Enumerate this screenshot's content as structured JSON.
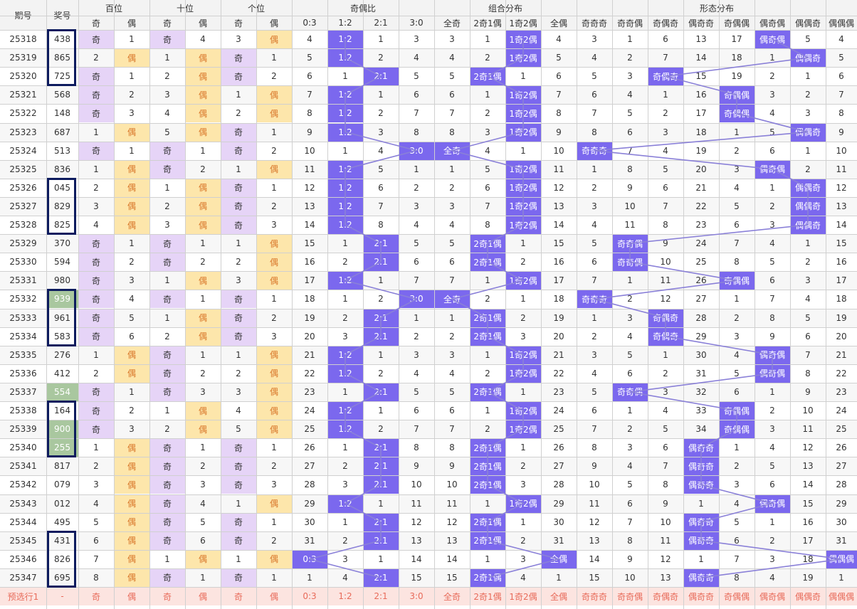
{
  "headers": {
    "qihao": "期号",
    "jianghao": "奖号",
    "sort_icon": "sort-arrows-icon",
    "groups": [
      "百位",
      "十位",
      "个位",
      "奇偶比",
      "组合分布",
      "形态分布"
    ],
    "sub_bai": [
      "奇",
      "偶"
    ],
    "sub_shi": [
      "奇",
      "偶"
    ],
    "sub_ge": [
      "奇",
      "偶"
    ],
    "sub_ratio": [
      "0:3",
      "1:2",
      "2:1",
      "3:0"
    ],
    "sub_combo": [
      "全奇",
      "2奇1偶",
      "1奇2偶",
      "全偶"
    ],
    "sub_shape": [
      "奇奇奇",
      "奇奇偶",
      "奇偶奇",
      "偶奇奇",
      "奇偶偶",
      "偶奇偶",
      "偶偶奇",
      "偶偶偶"
    ]
  },
  "colors": {
    "chip": "#7b68ee",
    "odd_fill": "#e6d4f7",
    "even_fill": "#fde6ab",
    "highlight_num": "#a9c79f",
    "box_border": "#0d1b5e",
    "footer_text": "#e86b5a"
  },
  "rows": [
    {
      "qi": "25318",
      "num": "438",
      "hl": 0,
      "b": "奇",
      "bv": "1",
      "s": "奇",
      "sv": "4",
      "g": "3",
      "gv": "偶",
      "r": [
        "4",
        "1:2",
        "1",
        "3"
      ],
      "rh": 1,
      "c": [
        "3",
        "1",
        "1奇2偶",
        "4"
      ],
      "ch": 2,
      "f": [
        "3",
        "1",
        "6",
        "13",
        "17",
        "偶奇偶",
        "5",
        "4"
      ],
      "fh": 5
    },
    {
      "qi": "25319",
      "num": "865",
      "hl": 0,
      "b": "2",
      "bv": "偶",
      "s": "1",
      "sv": "偶",
      "g": "奇",
      "gv": "1",
      "r": [
        "5",
        "1:2",
        "2",
        "4"
      ],
      "rh": 1,
      "c": [
        "4",
        "2",
        "1奇2偶",
        "5"
      ],
      "ch": 2,
      "f": [
        "4",
        "2",
        "7",
        "14",
        "18",
        "1",
        "偶偶奇",
        "5"
      ],
      "fh": 6
    },
    {
      "qi": "25320",
      "num": "725",
      "hl": 0,
      "b": "奇",
      "bv": "1",
      "s": "2",
      "sv": "偶",
      "g": "奇",
      "gv": "2",
      "r": [
        "6",
        "1",
        "2:1",
        "5"
      ],
      "rh": 2,
      "c": [
        "5",
        "2奇1偶",
        "1",
        "6"
      ],
      "ch": 1,
      "f": [
        "5",
        "3",
        "奇偶奇",
        "15",
        "19",
        "2",
        "1",
        "6"
      ],
      "fh": 2
    },
    {
      "qi": "25321",
      "num": "568",
      "hl": 0,
      "b": "奇",
      "bv": "2",
      "s": "3",
      "sv": "偶",
      "g": "1",
      "gv": "偶",
      "r": [
        "7",
        "1:2",
        "1",
        "6"
      ],
      "rh": 1,
      "c": [
        "6",
        "1",
        "1奇2偶",
        "7"
      ],
      "ch": 2,
      "f": [
        "6",
        "4",
        "1",
        "16",
        "奇偶偶",
        "3",
        "2",
        "7"
      ],
      "fh": 4
    },
    {
      "qi": "25322",
      "num": "148",
      "hl": 0,
      "b": "奇",
      "bv": "3",
      "s": "4",
      "sv": "偶",
      "g": "2",
      "gv": "偶",
      "r": [
        "8",
        "1:2",
        "2",
        "7"
      ],
      "rh": 1,
      "c": [
        "7",
        "2",
        "1奇2偶",
        "8"
      ],
      "ch": 2,
      "f": [
        "7",
        "5",
        "2",
        "17",
        "奇偶偶",
        "4",
        "3",
        "8"
      ],
      "fh": 4
    },
    {
      "qi": "25323",
      "num": "687",
      "hl": 0,
      "b": "1",
      "bv": "偶",
      "s": "5",
      "sv": "偶",
      "g": "奇",
      "gv": "1",
      "r": [
        "9",
        "1:2",
        "3",
        "8"
      ],
      "rh": 1,
      "c": [
        "8",
        "3",
        "1奇2偶",
        "9"
      ],
      "ch": 2,
      "f": [
        "8",
        "6",
        "3",
        "18",
        "1",
        "5",
        "偶偶奇",
        "9"
      ],
      "fh": 6
    },
    {
      "qi": "25324",
      "num": "513",
      "hl": 0,
      "b": "奇",
      "bv": "1",
      "s": "奇",
      "sv": "1",
      "g": "奇",
      "gv": "2",
      "r": [
        "10",
        "1",
        "4",
        "3:0"
      ],
      "rh": 3,
      "c": [
        "全奇",
        "4",
        "1",
        "10"
      ],
      "ch": 0,
      "f": [
        "奇奇奇",
        "7",
        "4",
        "19",
        "2",
        "6",
        "1",
        "10"
      ],
      "fh": 0
    },
    {
      "qi": "25325",
      "num": "836",
      "hl": 0,
      "b": "1",
      "bv": "偶",
      "s": "奇",
      "sv": "2",
      "g": "1",
      "gv": "偶",
      "r": [
        "11",
        "1:2",
        "5",
        "1"
      ],
      "rh": 1,
      "c": [
        "1",
        "5",
        "1奇2偶",
        "11"
      ],
      "ch": 2,
      "f": [
        "1",
        "8",
        "5",
        "20",
        "3",
        "偶奇偶",
        "2",
        "11"
      ],
      "fh": 5
    },
    {
      "qi": "25326",
      "num": "045",
      "hl": 0,
      "b": "2",
      "bv": "偶",
      "s": "1",
      "sv": "偶",
      "g": "奇",
      "gv": "1",
      "r": [
        "12",
        "1:2",
        "6",
        "2"
      ],
      "rh": 1,
      "c": [
        "2",
        "6",
        "1奇2偶",
        "12"
      ],
      "ch": 2,
      "f": [
        "2",
        "9",
        "6",
        "21",
        "4",
        "1",
        "偶偶奇",
        "12"
      ],
      "fh": 6
    },
    {
      "qi": "25327",
      "num": "829",
      "hl": 0,
      "b": "3",
      "bv": "偶",
      "s": "2",
      "sv": "偶",
      "g": "奇",
      "gv": "2",
      "r": [
        "13",
        "1:2",
        "7",
        "3"
      ],
      "rh": 1,
      "c": [
        "3",
        "7",
        "1奇2偶",
        "13"
      ],
      "ch": 2,
      "f": [
        "3",
        "10",
        "7",
        "22",
        "5",
        "2",
        "偶偶奇",
        "13"
      ],
      "fh": 6
    },
    {
      "qi": "25328",
      "num": "825",
      "hl": 0,
      "b": "4",
      "bv": "偶",
      "s": "3",
      "sv": "偶",
      "g": "奇",
      "gv": "3",
      "r": [
        "14",
        "1:2",
        "8",
        "4"
      ],
      "rh": 1,
      "c": [
        "4",
        "8",
        "1奇2偶",
        "14"
      ],
      "ch": 2,
      "f": [
        "4",
        "11",
        "8",
        "23",
        "6",
        "3",
        "偶偶奇",
        "14"
      ],
      "fh": 6
    },
    {
      "qi": "25329",
      "num": "370",
      "hl": 0,
      "b": "奇",
      "bv": "1",
      "s": "奇",
      "sv": "1",
      "g": "1",
      "gv": "偶",
      "r": [
        "15",
        "1",
        "2:1",
        "5"
      ],
      "rh": 2,
      "c": [
        "5",
        "2奇1偶",
        "1",
        "15"
      ],
      "ch": 1,
      "f": [
        "5",
        "奇奇偶",
        "9",
        "24",
        "7",
        "4",
        "1",
        "15"
      ],
      "fh": 1
    },
    {
      "qi": "25330",
      "num": "594",
      "hl": 0,
      "b": "奇",
      "bv": "2",
      "s": "奇",
      "sv": "2",
      "g": "2",
      "gv": "偶",
      "r": [
        "16",
        "2",
        "2:1",
        "6"
      ],
      "rh": 2,
      "c": [
        "6",
        "2奇1偶",
        "2",
        "16"
      ],
      "ch": 1,
      "f": [
        "6",
        "奇奇偶",
        "10",
        "25",
        "8",
        "5",
        "2",
        "16"
      ],
      "fh": 1
    },
    {
      "qi": "25331",
      "num": "980",
      "hl": 0,
      "b": "奇",
      "bv": "3",
      "s": "1",
      "sv": "偶",
      "g": "3",
      "gv": "偶",
      "r": [
        "17",
        "1:2",
        "1",
        "7"
      ],
      "rh": 1,
      "c": [
        "7",
        "1",
        "1奇2偶",
        "17"
      ],
      "ch": 2,
      "f": [
        "7",
        "1",
        "11",
        "26",
        "奇偶偶",
        "6",
        "3",
        "17"
      ],
      "fh": 4
    },
    {
      "qi": "25332",
      "num": "939",
      "hl": 1,
      "b": "奇",
      "bv": "4",
      "s": "奇",
      "sv": "1",
      "g": "奇",
      "gv": "1",
      "r": [
        "18",
        "1",
        "2",
        "3:0"
      ],
      "rh": 3,
      "c": [
        "全奇",
        "2",
        "1",
        "18"
      ],
      "ch": 0,
      "f": [
        "奇奇奇",
        "2",
        "12",
        "27",
        "1",
        "7",
        "4",
        "18"
      ],
      "fh": 0
    },
    {
      "qi": "25333",
      "num": "961",
      "hl": 0,
      "b": "奇",
      "bv": "5",
      "s": "1",
      "sv": "偶",
      "g": "奇",
      "gv": "2",
      "r": [
        "19",
        "2",
        "2:1",
        "1"
      ],
      "rh": 2,
      "c": [
        "1",
        "2奇1偶",
        "2",
        "19"
      ],
      "ch": 1,
      "f": [
        "1",
        "3",
        "奇偶奇",
        "28",
        "2",
        "8",
        "5",
        "19"
      ],
      "fh": 2
    },
    {
      "qi": "25334",
      "num": "583",
      "hl": 0,
      "b": "奇",
      "bv": "6",
      "s": "2",
      "sv": "偶",
      "g": "奇",
      "gv": "3",
      "r": [
        "20",
        "3",
        "2:1",
        "2"
      ],
      "rh": 2,
      "c": [
        "2",
        "2奇1偶",
        "3",
        "20"
      ],
      "ch": 1,
      "f": [
        "2",
        "4",
        "奇偶奇",
        "29",
        "3",
        "9",
        "6",
        "20"
      ],
      "fh": 2
    },
    {
      "qi": "25335",
      "num": "276",
      "hl": 0,
      "b": "1",
      "bv": "偶",
      "s": "奇",
      "sv": "1",
      "g": "1",
      "gv": "偶",
      "r": [
        "21",
        "1:2",
        "1",
        "3"
      ],
      "rh": 1,
      "c": [
        "3",
        "1",
        "1奇2偶",
        "21"
      ],
      "ch": 2,
      "f": [
        "3",
        "5",
        "1",
        "30",
        "4",
        "偶奇偶",
        "7",
        "21"
      ],
      "fh": 5
    },
    {
      "qi": "25336",
      "num": "412",
      "hl": 0,
      "b": "2",
      "bv": "偶",
      "s": "奇",
      "sv": "2",
      "g": "2",
      "gv": "偶",
      "r": [
        "22",
        "1:2",
        "2",
        "4"
      ],
      "rh": 1,
      "c": [
        "4",
        "2",
        "1奇2偶",
        "22"
      ],
      "ch": 2,
      "f": [
        "4",
        "6",
        "2",
        "31",
        "5",
        "偶奇偶",
        "8",
        "22"
      ],
      "fh": 5
    },
    {
      "qi": "25337",
      "num": "554",
      "hl": 1,
      "b": "奇",
      "bv": "1",
      "s": "奇",
      "sv": "3",
      "g": "3",
      "gv": "偶",
      "r": [
        "23",
        "1",
        "2:1",
        "5"
      ],
      "rh": 2,
      "c": [
        "5",
        "2奇1偶",
        "1",
        "23"
      ],
      "ch": 1,
      "f": [
        "5",
        "奇奇偶",
        "3",
        "32",
        "6",
        "1",
        "9",
        "23"
      ],
      "fh": 1
    },
    {
      "qi": "25338",
      "num": "164",
      "hl": 0,
      "b": "奇",
      "bv": "2",
      "s": "1",
      "sv": "偶",
      "g": "4",
      "gv": "偶",
      "r": [
        "24",
        "1:2",
        "1",
        "6"
      ],
      "rh": 1,
      "c": [
        "6",
        "1",
        "1奇2偶",
        "24"
      ],
      "ch": 2,
      "f": [
        "6",
        "1",
        "4",
        "33",
        "奇偶偶",
        "2",
        "10",
        "24"
      ],
      "fh": 4
    },
    {
      "qi": "25339",
      "num": "900",
      "hl": 1,
      "b": "奇",
      "bv": "3",
      "s": "2",
      "sv": "偶",
      "g": "5",
      "gv": "偶",
      "r": [
        "25",
        "1:2",
        "2",
        "7"
      ],
      "rh": 1,
      "c": [
        "7",
        "2",
        "1奇2偶",
        "25"
      ],
      "ch": 2,
      "f": [
        "7",
        "2",
        "5",
        "34",
        "奇偶偶",
        "3",
        "11",
        "25"
      ],
      "fh": 4
    },
    {
      "qi": "25340",
      "num": "255",
      "hl": 1,
      "b": "1",
      "bv": "偶",
      "s": "奇",
      "sv": "1",
      "g": "奇",
      "gv": "1",
      "r": [
        "26",
        "1",
        "2:1",
        "8"
      ],
      "rh": 2,
      "c": [
        "8",
        "2奇1偶",
        "1",
        "26"
      ],
      "ch": 1,
      "f": [
        "8",
        "3",
        "6",
        "偶奇奇",
        "1",
        "4",
        "12",
        "26"
      ],
      "fh": 3
    },
    {
      "qi": "25341",
      "num": "817",
      "hl": 0,
      "b": "2",
      "bv": "偶",
      "s": "奇",
      "sv": "2",
      "g": "奇",
      "gv": "2",
      "r": [
        "27",
        "2",
        "2:1",
        "9"
      ],
      "rh": 2,
      "c": [
        "9",
        "2奇1偶",
        "2",
        "27"
      ],
      "ch": 1,
      "f": [
        "9",
        "4",
        "7",
        "偶奇奇",
        "2",
        "5",
        "13",
        "27"
      ],
      "fh": 3
    },
    {
      "qi": "25342",
      "num": "079",
      "hl": 0,
      "b": "3",
      "bv": "偶",
      "s": "奇",
      "sv": "3",
      "g": "奇",
      "gv": "3",
      "r": [
        "28",
        "3",
        "2:1",
        "10"
      ],
      "rh": 2,
      "c": [
        "10",
        "2奇1偶",
        "3",
        "28"
      ],
      "ch": 1,
      "f": [
        "10",
        "5",
        "8",
        "偶奇奇",
        "3",
        "6",
        "14",
        "28"
      ],
      "fh": 3
    },
    {
      "qi": "25343",
      "num": "012",
      "hl": 0,
      "b": "4",
      "bv": "偶",
      "s": "奇",
      "sv": "4",
      "g": "1",
      "gv": "偶",
      "r": [
        "29",
        "1:2",
        "1",
        "11"
      ],
      "rh": 1,
      "c": [
        "11",
        "1",
        "1奇2偶",
        "29"
      ],
      "ch": 2,
      "f": [
        "11",
        "6",
        "9",
        "1",
        "4",
        "偶奇偶",
        "15",
        "29"
      ],
      "fh": 5
    },
    {
      "qi": "25344",
      "num": "495",
      "hl": 0,
      "b": "5",
      "bv": "偶",
      "s": "奇",
      "sv": "5",
      "g": "奇",
      "gv": "1",
      "r": [
        "30",
        "1",
        "2:1",
        "12"
      ],
      "rh": 2,
      "c": [
        "12",
        "2奇1偶",
        "1",
        "30"
      ],
      "ch": 1,
      "f": [
        "12",
        "7",
        "10",
        "偶奇奇",
        "5",
        "1",
        "16",
        "30"
      ],
      "fh": 3
    },
    {
      "qi": "25345",
      "num": "431",
      "hl": 0,
      "b": "6",
      "bv": "偶",
      "s": "奇",
      "sv": "6",
      "g": "奇",
      "gv": "2",
      "r": [
        "31",
        "2",
        "2:1",
        "13"
      ],
      "rh": 2,
      "c": [
        "13",
        "2奇1偶",
        "2",
        "31"
      ],
      "ch": 1,
      "f": [
        "13",
        "8",
        "11",
        "偶奇奇",
        "6",
        "2",
        "17",
        "31"
      ],
      "fh": 3
    },
    {
      "qi": "25346",
      "num": "826",
      "hl": 0,
      "b": "7",
      "bv": "偶",
      "s": "1",
      "sv": "偶",
      "g": "1",
      "gv": "偶",
      "r": [
        "0:3",
        "3",
        "1",
        "14"
      ],
      "rh": 0,
      "c": [
        "14",
        "1",
        "3",
        "全偶"
      ],
      "ch": 3,
      "f": [
        "14",
        "9",
        "12",
        "1",
        "7",
        "3",
        "18",
        "偶偶偶"
      ],
      "fh": 7
    },
    {
      "qi": "25347",
      "num": "695",
      "hl": 0,
      "b": "8",
      "bv": "偶",
      "s": "奇",
      "sv": "1",
      "g": "奇",
      "gv": "1",
      "r": [
        "1",
        "4",
        "2:1",
        "15"
      ],
      "rh": 2,
      "c": [
        "15",
        "2奇1偶",
        "4",
        "1"
      ],
      "ch": 1,
      "f": [
        "15",
        "10",
        "13",
        "偶奇奇",
        "8",
        "4",
        "19",
        "1"
      ],
      "fh": 3
    }
  ],
  "footer": {
    "label": "预选行1",
    "num": "-",
    "cells": [
      "奇",
      "偶",
      "奇",
      "偶",
      "奇",
      "偶",
      "0:3",
      "1:2",
      "2:1",
      "3:0",
      "全奇",
      "2奇1偶",
      "1奇2偶",
      "全偶",
      "奇奇奇",
      "奇奇偶",
      "奇偶奇",
      "偶奇奇",
      "奇偶偶",
      "偶奇偶",
      "偶偶奇",
      "偶偶偶"
    ]
  }
}
